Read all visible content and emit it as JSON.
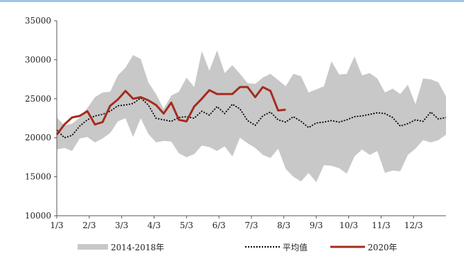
{
  "chart_data": {
    "type": "area",
    "title": "",
    "xlabel": "",
    "ylabel": "",
    "ylim": [
      10000,
      35000
    ],
    "yticks": [
      10000,
      15000,
      20000,
      25000,
      30000,
      35000
    ],
    "xtick_labels": [
      "1/3",
      "2/3",
      "3/3",
      "4/3",
      "5/3",
      "6/3",
      "7/3",
      "8/3",
      "9/3",
      "10/3",
      "11/3",
      "12/3"
    ],
    "weeks_total": 52,
    "legend": {
      "placement": "bottom",
      "entries": [
        "2014-2018年",
        "平均值",
        "2020年"
      ]
    },
    "colors": {
      "range": "#c8c8c8",
      "average": "#000000",
      "current": "#a52a1f",
      "axis": "#555555"
    },
    "series": [
      {
        "name": "2014-2018年",
        "kind": "range",
        "upper": [
          22600,
          21600,
          21800,
          22600,
          23800,
          25200,
          25800,
          25900,
          28000,
          29000,
          30600,
          30100,
          27100,
          25600,
          23700,
          25400,
          25900,
          27700,
          26500,
          31100,
          28600,
          31200,
          28300,
          29300,
          28200,
          27000,
          26900,
          27700,
          28200,
          27400,
          26600,
          28200,
          27900,
          25800,
          26200,
          26600,
          29800,
          28100,
          28200,
          30400,
          28000,
          28300,
          27600,
          25800,
          26300,
          25600,
          26800,
          24300,
          27600,
          27500,
          27100,
          25300
        ],
        "lower": [
          18500,
          18700,
          18300,
          19900,
          20100,
          19400,
          19900,
          20600,
          22100,
          22500,
          20100,
          22500,
          20500,
          19400,
          19600,
          19500,
          18000,
          17500,
          17900,
          19000,
          18800,
          18300,
          18900,
          17600,
          20000,
          19300,
          18700,
          17800,
          17400,
          18600,
          16000,
          15000,
          14400,
          15500,
          14300,
          16500,
          16400,
          16100,
          15400,
          17600,
          18500,
          17800,
          18300,
          15500,
          15800,
          15700,
          17800,
          18600,
          19700,
          19400,
          19700,
          20400
        ]
      },
      {
        "name": "平均值",
        "kind": "average",
        "values": [
          21000,
          20000,
          20300,
          21500,
          22300,
          22800,
          23000,
          23400,
          24100,
          24200,
          24400,
          25100,
          24200,
          22500,
          22300,
          22100,
          22600,
          22700,
          22500,
          23400,
          22900,
          24000,
          23100,
          24300,
          23700,
          22200,
          21600,
          22800,
          23300,
          22300,
          22000,
          22700,
          22100,
          21300,
          21900,
          22000,
          22200,
          22000,
          22300,
          22700,
          22800,
          23000,
          23200,
          23100,
          22600,
          21500,
          21800,
          22300,
          22100,
          23300,
          22400,
          22600
        ]
      },
      {
        "name": "2020年",
        "kind": "current",
        "values": [
          20400,
          21700,
          22600,
          22800,
          23400,
          21700,
          22000,
          24100,
          24900,
          26000,
          25000,
          25200,
          24800,
          24200,
          23100,
          24500,
          22300,
          22100,
          24000,
          25000,
          26100,
          25600,
          25600,
          25600,
          26500,
          26500,
          25200,
          26500,
          26000,
          23500,
          23600
        ]
      }
    ]
  }
}
